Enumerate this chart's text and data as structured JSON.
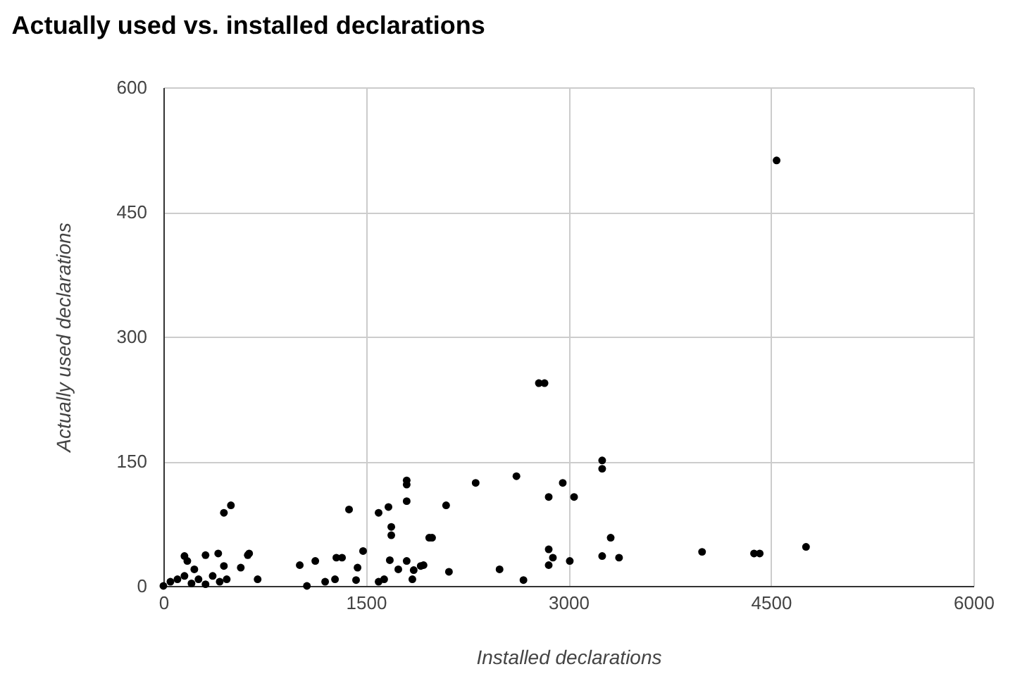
{
  "chart_data": {
    "type": "scatter",
    "title": "Actually used vs. installed declarations",
    "xlabel": "Installed declarations",
    "ylabel": "Actually used declarations",
    "xlim": [
      0,
      6000
    ],
    "xticks": [
      0,
      1500,
      3000,
      4500,
      6000
    ],
    "ylim": [
      0,
      600
    ],
    "yticks": [
      0,
      150,
      300,
      450,
      600
    ],
    "grid": true,
    "marker": "circle",
    "series": [
      {
        "color": "#000000",
        "x": [
          0,
          52,
          104,
          156,
          208,
          260,
          312,
          365,
          417,
          469,
          156,
          177,
          312,
          406,
          625,
          229,
          448,
          573,
          698,
          448,
          500,
          635,
          1010,
          1125,
          1281,
          1323,
          1438,
          1479,
          1375,
          1063,
          1198,
          1271,
          1427,
          1594,
          1635,
          1594,
          1667,
          1688,
          1688,
          1802,
          1802,
          1677,
          1740,
          1802,
          1854,
          1906,
          1969,
          1844,
          1927,
          1990,
          2094,
          2115,
          2313,
          2490,
          2615,
          2667,
          2854,
          2958,
          3042,
          2854,
          2885,
          2854,
          3010,
          3250,
          3250,
          3313,
          3250,
          3375,
          3990,
          2781,
          2823,
          1802,
          4375,
          4417,
          4760,
          4542
        ],
        "values": [
          0,
          5,
          8,
          12,
          3,
          8,
          2,
          12,
          5,
          8,
          36,
          30,
          37,
          39,
          37,
          20,
          24,
          22,
          8,
          88,
          97,
          39,
          25,
          30,
          34,
          34,
          22,
          42,
          92,
          0,
          5,
          8,
          7,
          5,
          8,
          88,
          95,
          71,
          61,
          122,
          102,
          31,
          20,
          30,
          19,
          24,
          58,
          8,
          25,
          58,
          97,
          17,
          124,
          20,
          132,
          7,
          107,
          124,
          107,
          44,
          34,
          25,
          30,
          151,
          141,
          58,
          36,
          34,
          41,
          244,
          244,
          127,
          39,
          39,
          47,
          512
        ]
      }
    ]
  }
}
